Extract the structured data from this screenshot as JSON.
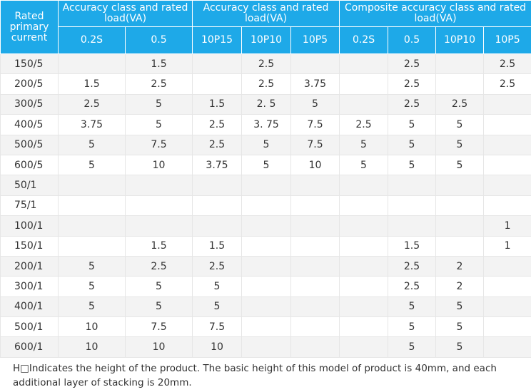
{
  "header": {
    "rated": "Rated primary current",
    "group1": "Accuracy class and rated load(VA)",
    "group2": "Accuracy class and rated load(VA)",
    "group3": "Composite accuracy class and rated load(VA)",
    "subs": [
      "0.2S",
      "0.5",
      "10P15",
      "10P10",
      "10P5",
      "0.2S",
      "0.5",
      "10P10",
      "10P5"
    ]
  },
  "rows": [
    [
      "150/5",
      "",
      "1.5",
      "",
      "2.5",
      "",
      "",
      "2.5",
      "",
      "2.5"
    ],
    [
      "200/5",
      "1.5",
      "2.5",
      "",
      "2.5",
      "3.75",
      "",
      "2.5",
      "",
      "2.5"
    ],
    [
      "300/5",
      "2.5",
      "5",
      "1.5",
      "2. 5",
      "5",
      "",
      "2.5",
      "2.5",
      ""
    ],
    [
      "400/5",
      "3.75",
      "5",
      "2.5",
      "3. 75",
      "7.5",
      "2.5",
      "5",
      "5",
      ""
    ],
    [
      "500/5",
      "5",
      "7.5",
      "2.5",
      "5",
      "7.5",
      "5",
      "5",
      "5",
      ""
    ],
    [
      "600/5",
      "5",
      "10",
      "3.75",
      "5",
      "10",
      "5",
      "5",
      "5",
      ""
    ],
    [
      "50/1",
      "",
      "",
      "",
      "",
      "",
      "",
      "",
      "",
      ""
    ],
    [
      "75/1",
      "",
      "",
      "",
      "",
      "",
      "",
      "",
      "",
      ""
    ],
    [
      "100/1",
      "",
      "",
      "",
      "",
      "",
      "",
      "",
      "",
      "1"
    ],
    [
      "150/1",
      "",
      "1.5",
      "1.5",
      "",
      "",
      "",
      "1.5",
      "",
      "1"
    ],
    [
      "200/1",
      "5",
      "2.5",
      "2.5",
      "",
      "",
      "",
      "2.5",
      "2",
      ""
    ],
    [
      "300/1",
      "5",
      "5",
      "5",
      "",
      "",
      "",
      "2.5",
      "2",
      ""
    ],
    [
      "400/1",
      "5",
      "5",
      "5",
      "",
      "",
      "",
      "5",
      "5",
      ""
    ],
    [
      "500/1",
      "10",
      "7.5",
      "7.5",
      "",
      "",
      "",
      "5",
      "5",
      ""
    ],
    [
      "600/1",
      "10",
      "10",
      "10",
      "",
      "",
      "",
      "5",
      "5",
      ""
    ]
  ],
  "note": "H□Indicates the height of the product. The basic height of this model of product is 40mm, and each additional layer of stacking is 20mm.",
  "colors": {
    "header_bg": "#1ea9e8",
    "header_text": "#ffffff",
    "stripe": "#f3f3f3",
    "text": "#333333"
  }
}
